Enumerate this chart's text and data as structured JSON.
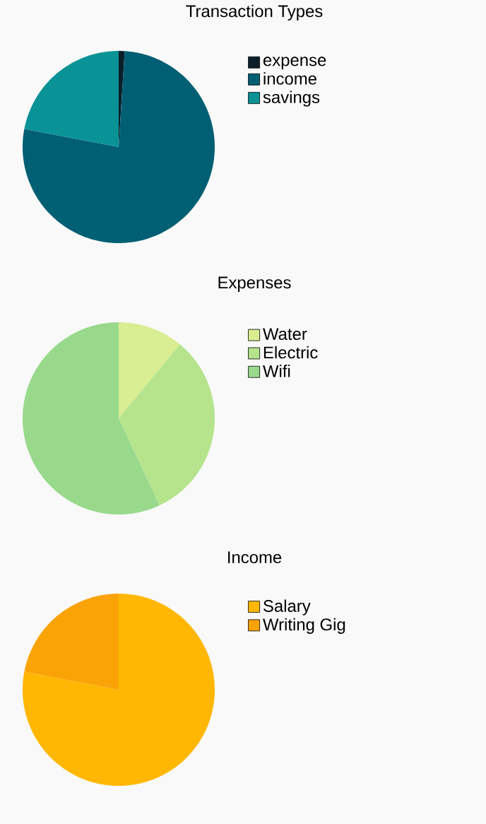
{
  "chart_data": [
    {
      "type": "pie",
      "title": "Transaction Types",
      "categories": [
        "expense",
        "income",
        "savings"
      ],
      "values": [
        1,
        77,
        22
      ],
      "colors": [
        "#0b1f2a",
        "#005f73",
        "#0a9396"
      ],
      "legend": "right"
    },
    {
      "type": "pie",
      "title": "Expenses",
      "categories": [
        "Water",
        "Electric",
        "Wifi"
      ],
      "values": [
        11,
        32,
        57
      ],
      "colors": [
        "#d9ed92",
        "#b5e48c",
        "#99d98c"
      ],
      "legend": "right"
    },
    {
      "type": "pie",
      "title": "Income",
      "categories": [
        "Salary",
        "Writing Gig"
      ],
      "values": [
        78,
        22
      ],
      "colors": [
        "#ffb703",
        "#faa307"
      ],
      "legend": "right"
    }
  ]
}
